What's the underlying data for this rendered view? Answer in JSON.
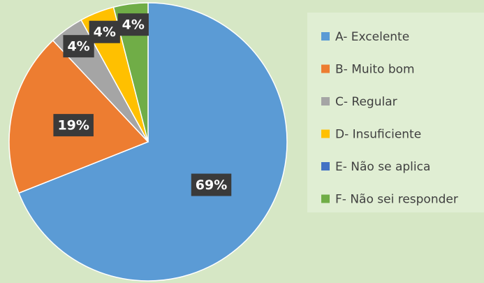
{
  "chart_data": {
    "type": "pie",
    "categories": [
      "A- Excelente",
      "B- Muito bom",
      "C- Regular",
      "D- Insuficiente",
      "E- Não se aplica",
      "F- Não sei responder"
    ],
    "values": [
      69,
      19,
      4,
      4,
      0,
      4
    ],
    "value_labels": [
      "69%",
      "19%",
      "4%",
      "4%",
      null,
      "4%"
    ],
    "colors": [
      "#5b9bd5",
      "#ed7d31",
      "#a5a5a5",
      "#ffc000",
      "#4472c4",
      "#70ad47"
    ],
    "legend": "right"
  }
}
